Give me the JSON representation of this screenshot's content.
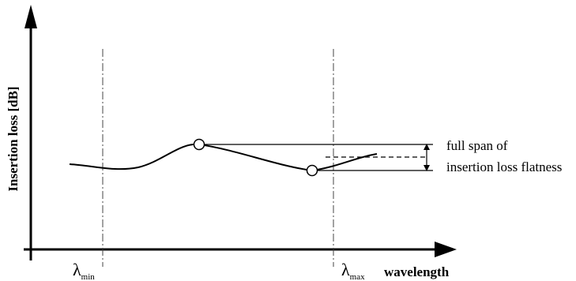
{
  "diagram": {
    "y_axis_label": "Insertion loss [dB]",
    "x_axis_label": "wavelength",
    "lambda_min": {
      "symbol": "λ",
      "subscript": "min"
    },
    "lambda_max": {
      "symbol": "λ",
      "subscript": "max"
    },
    "annotation_line1": "full span of",
    "annotation_line2": "insertion loss flatness"
  }
}
